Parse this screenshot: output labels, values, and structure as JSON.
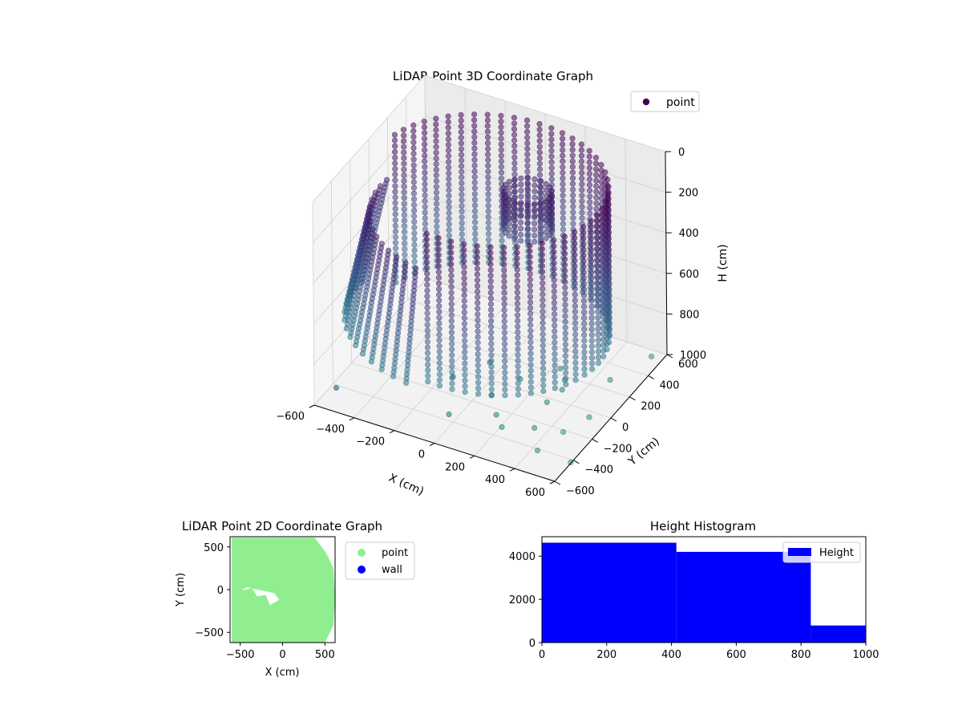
{
  "chart_data": [
    {
      "type": "scatter3d",
      "title": "LiDAR Point 3D Coordinate Graph",
      "xlabel": "X (cm)",
      "ylabel": "Y (cm)",
      "zlabel": "H (cm)",
      "xlim": [
        -600,
        600
      ],
      "ylim": [
        -600,
        600
      ],
      "zlim": [
        1000,
        0
      ],
      "xticks": [
        -600,
        -400,
        -200,
        0,
        200,
        400,
        600
      ],
      "yticks": [
        -600,
        -400,
        -200,
        0,
        200,
        400,
        600
      ],
      "zticks": [
        0,
        200,
        400,
        600,
        800,
        1000
      ],
      "grid": true,
      "legend": {
        "position": "top-right",
        "entries": [
          {
            "name": "point",
            "color": "#440154"
          }
        ]
      },
      "colormap": "viridis",
      "series": [
        {
          "name": "point",
          "description_sample": "cylindrical wall surface; ring radius ~520 cm from H 0 to ~750 cm, plus scattered floor points",
          "points": [
            {
              "x": -560,
              "y": -450,
              "h": 980
            },
            {
              "x": -150,
              "y": -80,
              "h": 990
            },
            {
              "x": 60,
              "y": -120,
              "h": 995
            },
            {
              "x": 120,
              "y": 60,
              "h": 990
            },
            {
              "x": 250,
              "y": 210,
              "h": 975
            },
            {
              "x": 300,
              "y": 150,
              "h": 985
            },
            {
              "x": 320,
              "y": 80,
              "h": 990
            },
            {
              "x": 150,
              "y": -260,
              "h": 990
            },
            {
              "x": -40,
              "y": -360,
              "h": 995
            },
            {
              "x": 300,
              "y": -40,
              "h": 995
            },
            {
              "x": 480,
              "y": 250,
              "h": 980
            },
            {
              "x": 520,
              "y": -60,
              "h": 990
            },
            {
              "x": 340,
              "y": -260,
              "h": 995
            },
            {
              "x": 470,
              "y": -230,
              "h": 990
            },
            {
              "x": 210,
              "y": -330,
              "h": 995
            },
            {
              "x": 430,
              "y": -420,
              "h": 995
            },
            {
              "x": 600,
              "y": -430,
              "h": 995
            },
            {
              "x": 560,
              "y": 520,
              "h": 980
            },
            {
              "x": -60,
              "y": 120,
              "h": 995
            }
          ]
        }
      ]
    },
    {
      "type": "scatter",
      "title": "LiDAR Point 2D Coordinate Graph",
      "xlabel": "X (cm)",
      "ylabel": "Y (cm)",
      "xlim": [
        -620,
        620
      ],
      "ylim": [
        -620,
        620
      ],
      "xticks": [
        -500,
        0,
        500
      ],
      "yticks": [
        -500,
        0,
        500
      ],
      "legend": {
        "position": "outside-right",
        "entries": [
          {
            "name": "point",
            "color": "#90ee90"
          },
          {
            "name": "wall",
            "color": "#0000ff"
          }
        ]
      },
      "series": [
        {
          "name": "point",
          "color": "#90ee90",
          "description": "dense filled region of floor points"
        },
        {
          "name": "wall",
          "color": "#0000ff",
          "values": []
        }
      ]
    },
    {
      "type": "bar",
      "title": "Height Histogram",
      "xlabel": "",
      "ylabel": "",
      "xlim": [
        0,
        1000
      ],
      "ylim": [
        0,
        4900
      ],
      "xticks": [
        0,
        200,
        400,
        600,
        800,
        1000
      ],
      "yticks": [
        0,
        2000,
        4000
      ],
      "legend": {
        "position": "top-right",
        "entries": [
          {
            "name": "Height",
            "color": "#0000ff"
          }
        ]
      },
      "series": [
        {
          "name": "Height",
          "color": "#0000ff",
          "bins": [
            {
              "start": 0,
              "end": 415,
              "count": 4620
            },
            {
              "start": 415,
              "end": 830,
              "count": 4200
            },
            {
              "start": 830,
              "end": 1000,
              "count": 790
            }
          ]
        }
      ]
    }
  ]
}
